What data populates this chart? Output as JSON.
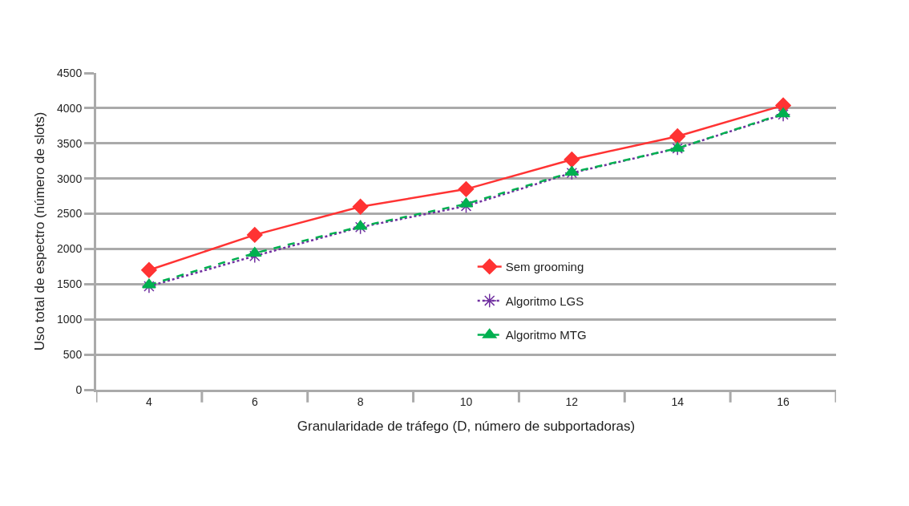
{
  "chart_data": {
    "type": "line",
    "xlabel": "Granularidade de tráfego (D, número de subportadoras)",
    "ylabel": "Uso total de espectro (número de slots)",
    "categories": [
      "4",
      "6",
      "8",
      "10",
      "12",
      "14",
      "16"
    ],
    "series": [
      {
        "name": "Sem grooming",
        "color": "#ff3333",
        "marker": "diamond",
        "line_style": "solid",
        "values": [
          1700,
          2200,
          2600,
          2850,
          3270,
          3600,
          4040
        ]
      },
      {
        "name": "Algoritmo LGS",
        "color": "#7030a0",
        "marker": "cross",
        "line_style": "dotted",
        "values": [
          1470,
          1900,
          2310,
          2610,
          3080,
          3430,
          3910
        ]
      },
      {
        "name": "Algoritmo MTG",
        "color": "#00b050",
        "marker": "triangle",
        "line_style": "dashed",
        "values": [
          1490,
          1940,
          2320,
          2640,
          3090,
          3430,
          3920
        ]
      }
    ],
    "ylim": [
      0,
      4500
    ],
    "yticks": [
      0,
      500,
      1000,
      1500,
      2000,
      2500,
      3000,
      3500,
      4000,
      4500
    ],
    "grid": "y",
    "legend": "center"
  }
}
